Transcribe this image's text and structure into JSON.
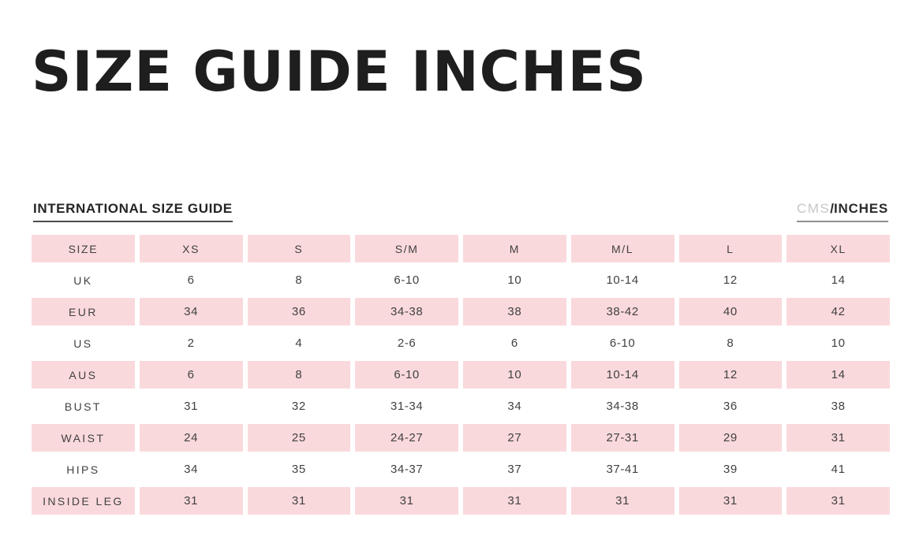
{
  "page": {
    "title": "SIZE GUIDE INCHES",
    "subtitle": "INTERNATIONAL SIZE GUIDE",
    "units": {
      "cms": "CMS",
      "separator": "/",
      "inches": "INCHES"
    }
  },
  "colors": {
    "pink": "#fad9dc",
    "title_text": "#1e1e1e",
    "cell_text": "#414141",
    "muted_unit": "#c7c7c7"
  },
  "chart_data": {
    "type": "table",
    "title": "INTERNATIONAL SIZE GUIDE",
    "columns": [
      "SIZE",
      "XS",
      "S",
      "S/M",
      "M",
      "M/L",
      "L",
      "XL"
    ],
    "rows": [
      {
        "label": "UK",
        "values": [
          "6",
          "8",
          "6-10",
          "10",
          "10-14",
          "12",
          "14"
        ]
      },
      {
        "label": "EUR",
        "values": [
          "34",
          "36",
          "34-38",
          "38",
          "38-42",
          "40",
          "42"
        ]
      },
      {
        "label": "US",
        "values": [
          "2",
          "4",
          "2-6",
          "6",
          "6-10",
          "8",
          "10"
        ]
      },
      {
        "label": "AUS",
        "values": [
          "6",
          "8",
          "6-10",
          "10",
          "10-14",
          "12",
          "14"
        ]
      },
      {
        "label": "BUST",
        "values": [
          "31",
          "32",
          "31-34",
          "34",
          "34-38",
          "36",
          "38"
        ]
      },
      {
        "label": "WAIST",
        "values": [
          "24",
          "25",
          "24-27",
          "27",
          "27-31",
          "29",
          "31"
        ]
      },
      {
        "label": "HIPS",
        "values": [
          "34",
          "35",
          "34-37",
          "37",
          "37-41",
          "39",
          "41"
        ]
      },
      {
        "label": "INSIDE LEG",
        "values": [
          "31",
          "31",
          "31",
          "31",
          "31",
          "31",
          "31"
        ]
      }
    ]
  }
}
